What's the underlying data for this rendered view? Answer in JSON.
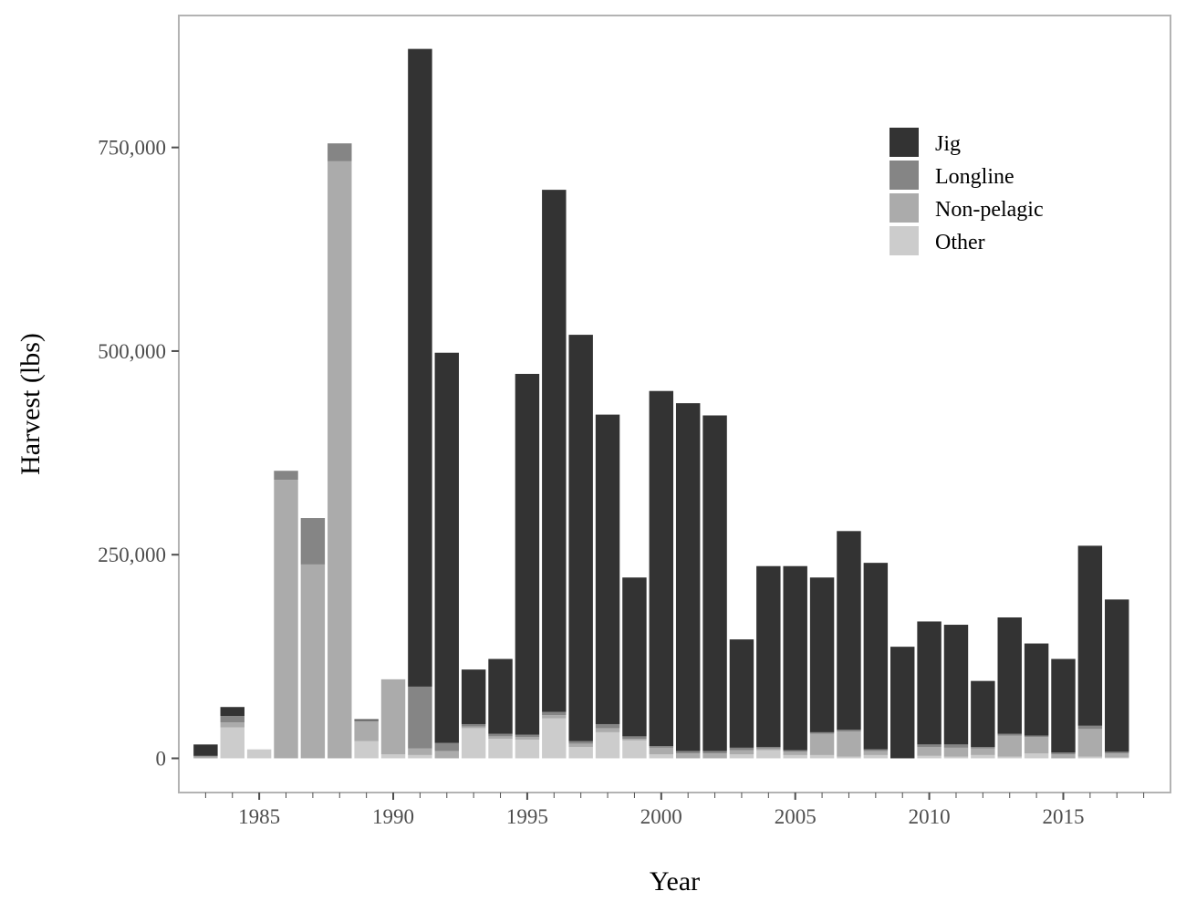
{
  "chart_data": {
    "type": "bar",
    "stacked": true,
    "title": "",
    "xlabel": "Year",
    "ylabel": "Harvest (lbs)",
    "xlim": [
      1982,
      2019
    ],
    "ylim": [
      -42000,
      912000
    ],
    "xticks": [
      1985,
      1990,
      1995,
      2000,
      2005,
      2010,
      2015
    ],
    "yticks": [
      0,
      250000,
      500000,
      750000
    ],
    "ytick_labels": [
      "0",
      "250,000",
      "500,000",
      "750,000"
    ],
    "grid": false,
    "legend_position": "top-right",
    "stack_order": [
      "Other",
      "Non-pelagic",
      "Longline",
      "Jig"
    ],
    "colors": {
      "Jig": "#333333",
      "Longline": "#858585",
      "Non-pelagic": "#ababab",
      "Other": "#cccccc",
      "frame": "#b3b3b3",
      "tick": "#4d4d4d"
    },
    "x": [
      1983,
      1984,
      1985,
      1986,
      1987,
      1988,
      1989,
      1990,
      1991,
      1992,
      1993,
      1994,
      1995,
      1996,
      1997,
      1998,
      1999,
      2000,
      2001,
      2002,
      2003,
      2004,
      2005,
      2006,
      2007,
      2008,
      2009,
      2010,
      2011,
      2012,
      2013,
      2014,
      2015,
      2016,
      2017
    ],
    "series": [
      {
        "name": "Jig",
        "values": [
          14000,
          11000,
          0,
          0,
          0,
          0,
          1000,
          0,
          783000,
          479000,
          67000,
          92000,
          443000,
          641000,
          499000,
          380000,
          195000,
          436000,
          427000,
          412000,
          133000,
          222000,
          226000,
          190000,
          244000,
          229000,
          137000,
          151000,
          147000,
          81000,
          143000,
          113000,
          115000,
          221000,
          187000
        ]
      },
      {
        "name": "Longline",
        "values": [
          1000,
          8000,
          0,
          11000,
          57000,
          22000,
          2000,
          0,
          76000,
          10000,
          3000,
          3000,
          3000,
          4000,
          3000,
          5000,
          3000,
          2000,
          3000,
          3000,
          3000,
          2000,
          2000,
          2000,
          2000,
          2000,
          0,
          3000,
          4000,
          2000,
          2000,
          2000,
          2000,
          4000,
          2000
        ]
      },
      {
        "name": "Non-pelagic",
        "values": [
          2000,
          6000,
          0,
          342000,
          238000,
          733000,
          24000,
          92000,
          8000,
          9000,
          2000,
          3000,
          3000,
          4000,
          4000,
          5000,
          2000,
          8000,
          6000,
          6000,
          5000,
          2000,
          4000,
          26000,
          31000,
          5000,
          0,
          11000,
          11000,
          8000,
          26000,
          20000,
          5000,
          34000,
          5000
        ]
      },
      {
        "name": "Other",
        "values": [
          0,
          38000,
          11000,
          0,
          0,
          0,
          21000,
          5000,
          4000,
          0,
          37000,
          24000,
          23000,
          49000,
          14000,
          32000,
          22000,
          5000,
          0,
          0,
          5000,
          10000,
          4000,
          4000,
          2000,
          4000,
          0,
          3000,
          2000,
          4000,
          2000,
          6000,
          0,
          2000,
          1000
        ]
      }
    ]
  }
}
